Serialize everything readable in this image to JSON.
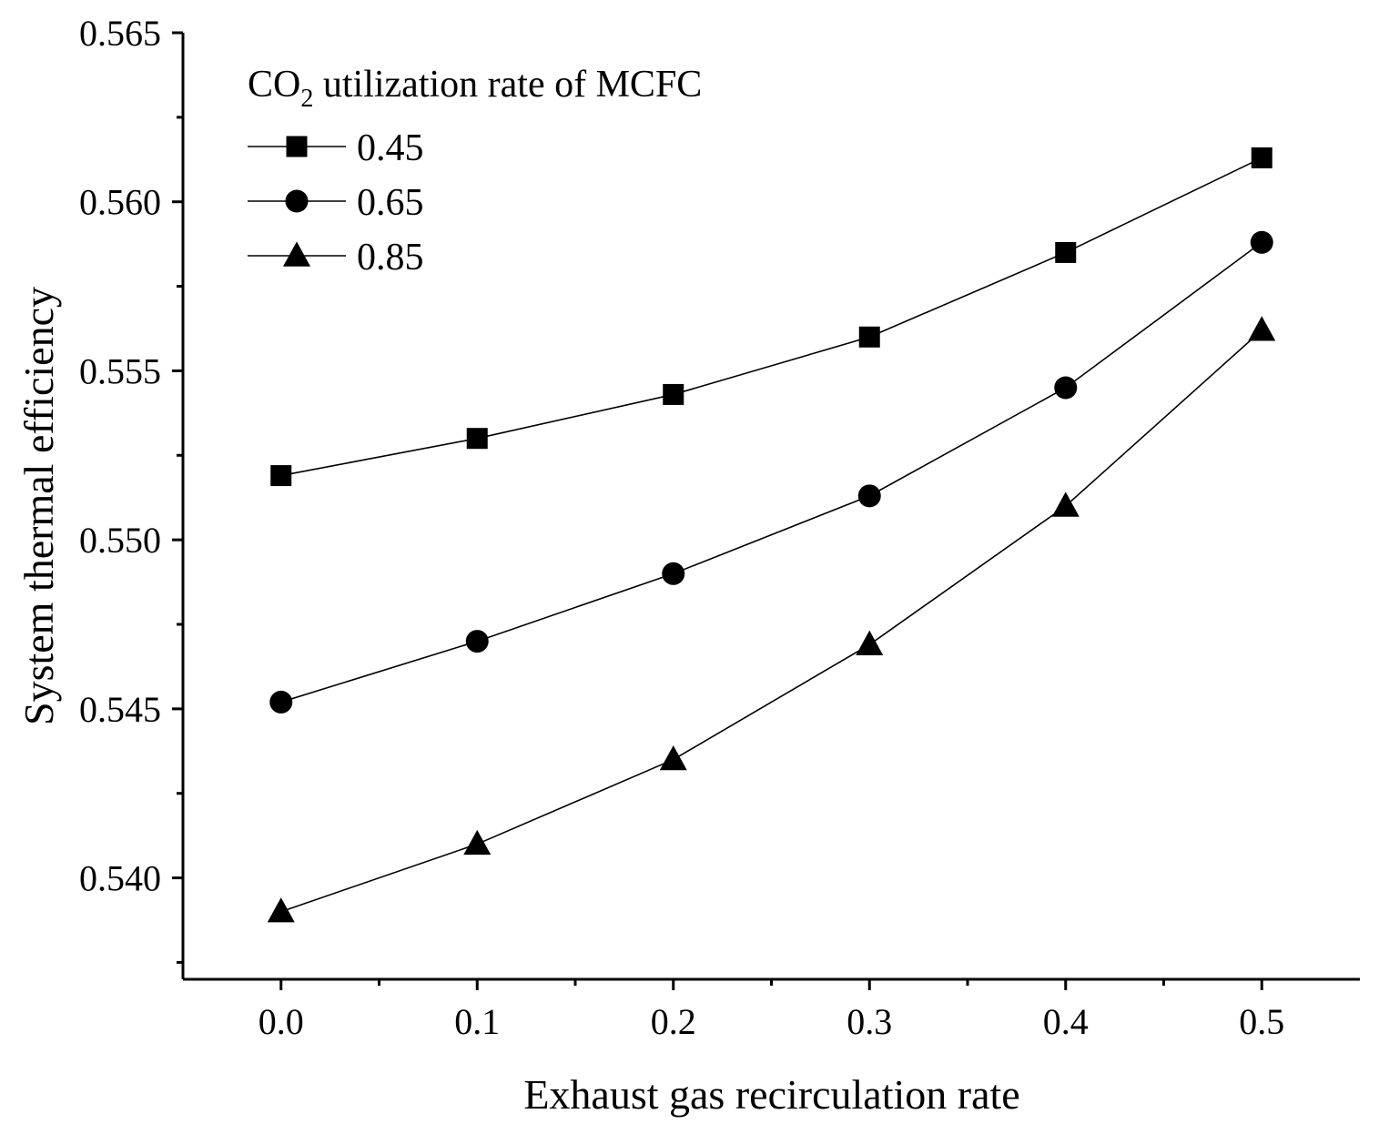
{
  "chart_data": {
    "type": "line",
    "title": "",
    "xlabel": "Exhaust gas recirculation rate",
    "ylabel": "System thermal efficiency",
    "xlim": [
      -0.05,
      0.55
    ],
    "ylim": [
      0.537,
      0.565
    ],
    "x": [
      0.0,
      0.1,
      0.2,
      0.3,
      0.4,
      0.5
    ],
    "x_tick_labels": [
      "0.0",
      "0.1",
      "0.2",
      "0.3",
      "0.4",
      "0.5"
    ],
    "x_tick_values": [
      0.0,
      0.1,
      0.2,
      0.3,
      0.4,
      0.5
    ],
    "x_minor_tick_values": [
      0.05,
      0.15,
      0.25,
      0.35,
      0.45
    ],
    "y_tick_labels": [
      "0.540",
      "0.545",
      "0.550",
      "0.555",
      "0.560",
      "0.565"
    ],
    "y_tick_values": [
      0.54,
      0.545,
      0.55,
      0.555,
      0.56,
      0.565
    ],
    "y_minor_tick_values": [
      0.5375,
      0.5425,
      0.5475,
      0.5525,
      0.5575,
      0.5625
    ],
    "legend": {
      "title_prefix": "CO",
      "title_subscript": "2",
      "title_suffix": " utilization rate of MCFC",
      "position": "top-left"
    },
    "series": [
      {
        "name": "0.45",
        "marker": "square",
        "values": [
          0.5519,
          0.553,
          0.5543,
          0.556,
          0.5585,
          0.5613
        ]
      },
      {
        "name": "0.65",
        "marker": "circle",
        "values": [
          0.5452,
          0.547,
          0.549,
          0.5513,
          0.5545,
          0.5588
        ]
      },
      {
        "name": "0.85",
        "marker": "triangle",
        "values": [
          0.539,
          0.541,
          0.5435,
          0.5469,
          0.551,
          0.5562
        ]
      }
    ],
    "grid": false,
    "color": "#000000"
  }
}
